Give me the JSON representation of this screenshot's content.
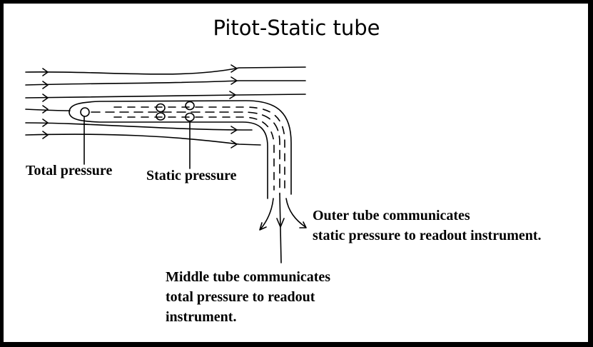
{
  "title": "Pitot-Static tube",
  "labels": {
    "total_pressure": "Total pressure",
    "static_pressure": "Static pressure",
    "outer_tube_line1": "Outer tube communicates",
    "outer_tube_line2": "static pressure to readout instrument.",
    "middle_tube_line1": "Middle tube communicates",
    "middle_tube_line2": "total pressure to readout",
    "middle_tube_line3": "instrument."
  },
  "colors": {
    "border": "#000000",
    "background": "#ffffff",
    "ink": "#000000"
  }
}
